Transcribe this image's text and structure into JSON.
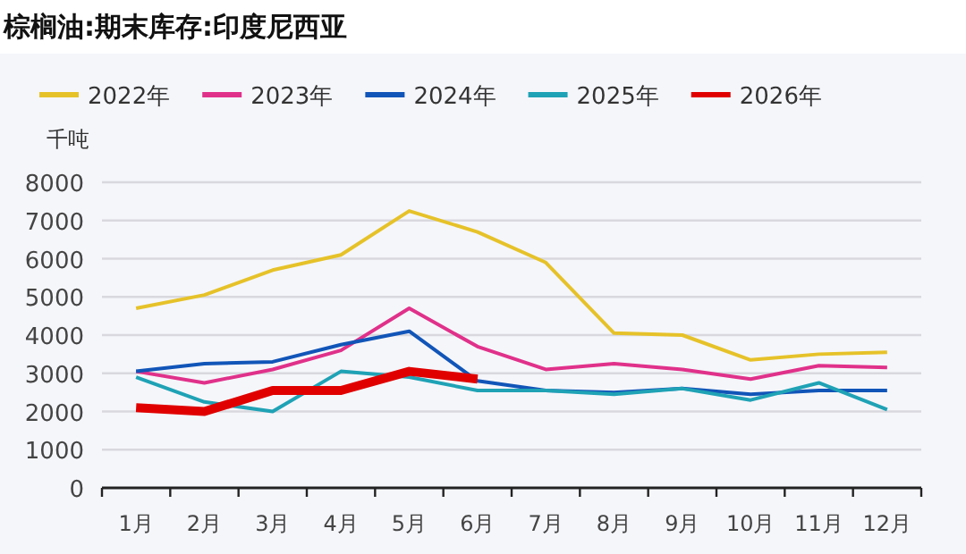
{
  "chart_data": {
    "type": "line",
    "title": "棕榈油:期末库存:印度尼西亚",
    "ylabel": "千吨",
    "categories": [
      "1月",
      "2月",
      "3月",
      "4月",
      "5月",
      "6月",
      "7月",
      "8月",
      "9月",
      "10月",
      "11月",
      "12月"
    ],
    "series": [
      {
        "name": "2022年",
        "color": "#e6c229",
        "values": [
          4700,
          5050,
          5700,
          6100,
          7250,
          6700,
          5900,
          4050,
          4000,
          3350,
          3500,
          3550
        ]
      },
      {
        "name": "2023年",
        "color": "#e0318a",
        "values": [
          3050,
          2750,
          3100,
          3600,
          4700,
          3700,
          3100,
          3250,
          3100,
          2850,
          3200,
          3150
        ]
      },
      {
        "name": "2024年",
        "color": "#1155b8",
        "values": [
          3050,
          3250,
          3300,
          3750,
          4100,
          2800,
          2550,
          2500,
          2600,
          2450,
          2550,
          2550
        ]
      },
      {
        "name": "2025年",
        "color": "#1fa2b5",
        "values": [
          2900,
          2250,
          2000,
          3050,
          2900,
          2550,
          2550,
          2450,
          2600,
          2300,
          2750,
          2050
        ]
      },
      {
        "name": "2026年",
        "color": "#e00000",
        "values": [
          2100,
          2000,
          2550,
          2550,
          3050,
          2850,
          null,
          null,
          null,
          null,
          null,
          null
        ]
      }
    ],
    "ylim": [
      0,
      8000
    ],
    "yticks": [
      0,
      1000,
      2000,
      3000,
      4000,
      5000,
      6000,
      7000,
      8000
    ],
    "grid": "y",
    "legend": "top left"
  }
}
